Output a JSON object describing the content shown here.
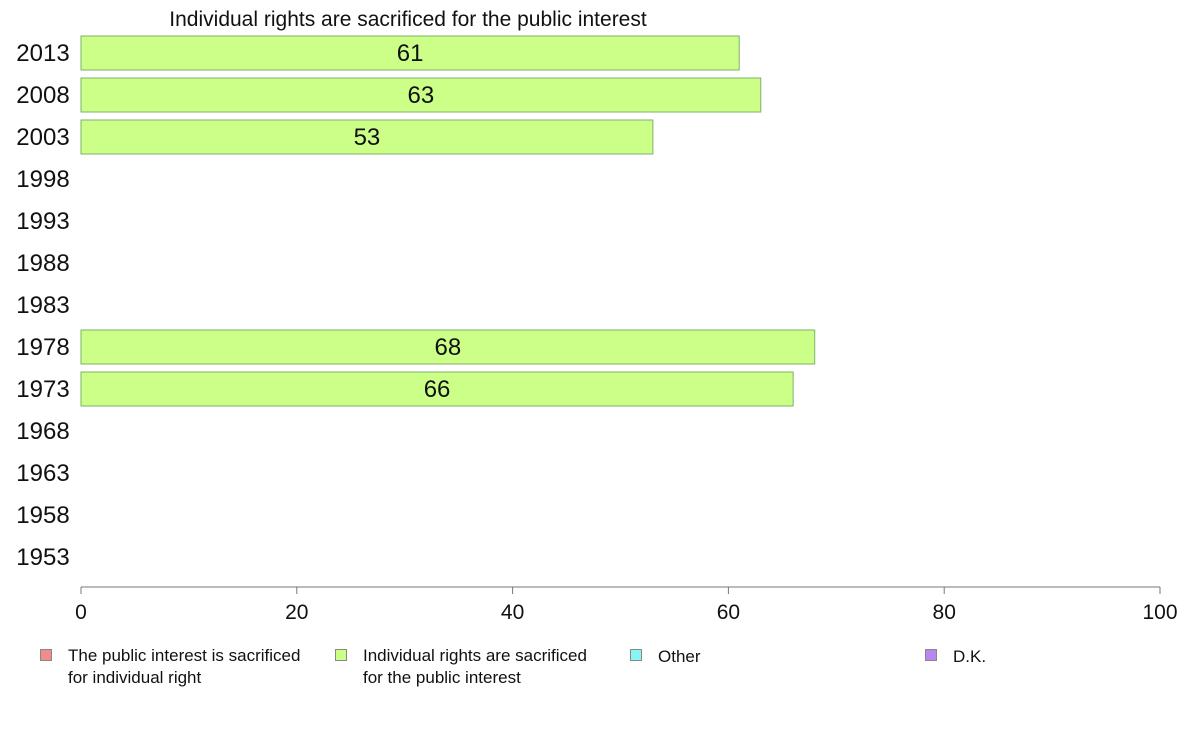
{
  "chart_data": {
    "type": "bar",
    "orientation": "horizontal",
    "title": "Individual rights are sacrificed for the public interest",
    "categories": [
      "2013",
      "2008",
      "2003",
      "1998",
      "1993",
      "1988",
      "1983",
      "1978",
      "1973",
      "1968",
      "1963",
      "1958",
      "1953"
    ],
    "series": [
      {
        "name": "Individual rights are sacrificed for the public interest",
        "color": "#ccff88",
        "values": [
          61,
          63,
          53,
          null,
          null,
          null,
          null,
          68,
          66,
          null,
          null,
          null,
          null
        ]
      }
    ],
    "xlim": [
      0,
      100
    ],
    "xticks": [
      "0",
      "20",
      "40",
      "60",
      "80",
      "100"
    ],
    "grid": false,
    "legend_position": "bottom",
    "legend": [
      {
        "label": "The public interest is sacrificed\nfor individual right",
        "color": "#f28b8b"
      },
      {
        "label": "Individual rights are sacrificed\nfor the public interest",
        "color": "#ccff88"
      },
      {
        "label": "Other",
        "color": "#88f5f5"
      },
      {
        "label": "D.K.",
        "color": "#b888f0"
      }
    ]
  }
}
